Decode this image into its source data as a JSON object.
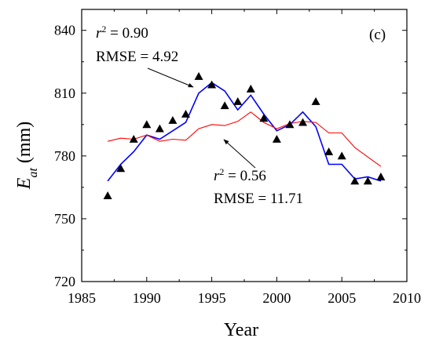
{
  "chart_data": {
    "type": "scatter",
    "panel_label": "(c)",
    "xlabel": "Year",
    "ylabel": {
      "main": "E",
      "sub": "at",
      "unit": " (mm)"
    },
    "xlim": [
      1985,
      2010
    ],
    "ylim": [
      720,
      850
    ],
    "x_ticks": [
      1985,
      1990,
      1995,
      2000,
      2005,
      2010
    ],
    "y_ticks": [
      720,
      750,
      780,
      810,
      840
    ],
    "grid": false,
    "observed": {
      "marker": "filled-triangle",
      "color": "#000000",
      "x": [
        1987,
        1988,
        1989,
        1990,
        1991,
        1992,
        1993,
        1994,
        1995,
        1996,
        1997,
        1998,
        1999,
        2000,
        2001,
        2002,
        2003,
        2004,
        2005,
        2006,
        2007,
        2008
      ],
      "y": [
        761,
        774,
        788,
        795,
        793,
        797,
        800,
        818,
        814,
        804,
        806,
        812,
        798,
        788,
        795,
        796,
        806,
        782,
        780,
        768,
        768,
        770
      ]
    },
    "series": [
      {
        "color": "#0000ff",
        "x": [
          1987,
          1988,
          1989,
          1990,
          1991,
          1992,
          1993,
          1994,
          1995,
          1996,
          1997,
          1998,
          1999,
          2000,
          2001,
          2002,
          2003,
          2004,
          2005,
          2006,
          2007,
          2008
        ],
        "y": [
          768,
          776,
          782,
          790,
          788,
          792,
          796,
          810,
          815,
          811,
          802,
          809,
          800,
          792,
          795,
          801,
          794,
          776,
          776,
          769,
          770,
          768
        ]
      },
      {
        "color": "#ff0000",
        "x": [
          1987,
          1988,
          1989,
          1990,
          1991,
          1992,
          1993,
          1994,
          1995,
          1996,
          1997,
          1998,
          1999,
          2000,
          2001,
          2002,
          2003,
          2004,
          2005,
          2006,
          2007,
          2008
        ],
        "y": [
          787,
          788.5,
          788,
          790,
          787,
          788,
          787.5,
          793,
          795,
          794.5,
          796.5,
          801,
          796,
          793,
          795.5,
          796.5,
          796,
          791,
          791,
          784,
          779.5,
          775
        ]
      }
    ],
    "annotations": [
      {
        "r2_label": "r",
        "r2_value": " = 0.90",
        "rmse": "RMSE = 4.92"
      },
      {
        "r2_label": "r",
        "r2_value": " = 0.56",
        "rmse": "RMSE = 11.71"
      }
    ]
  }
}
